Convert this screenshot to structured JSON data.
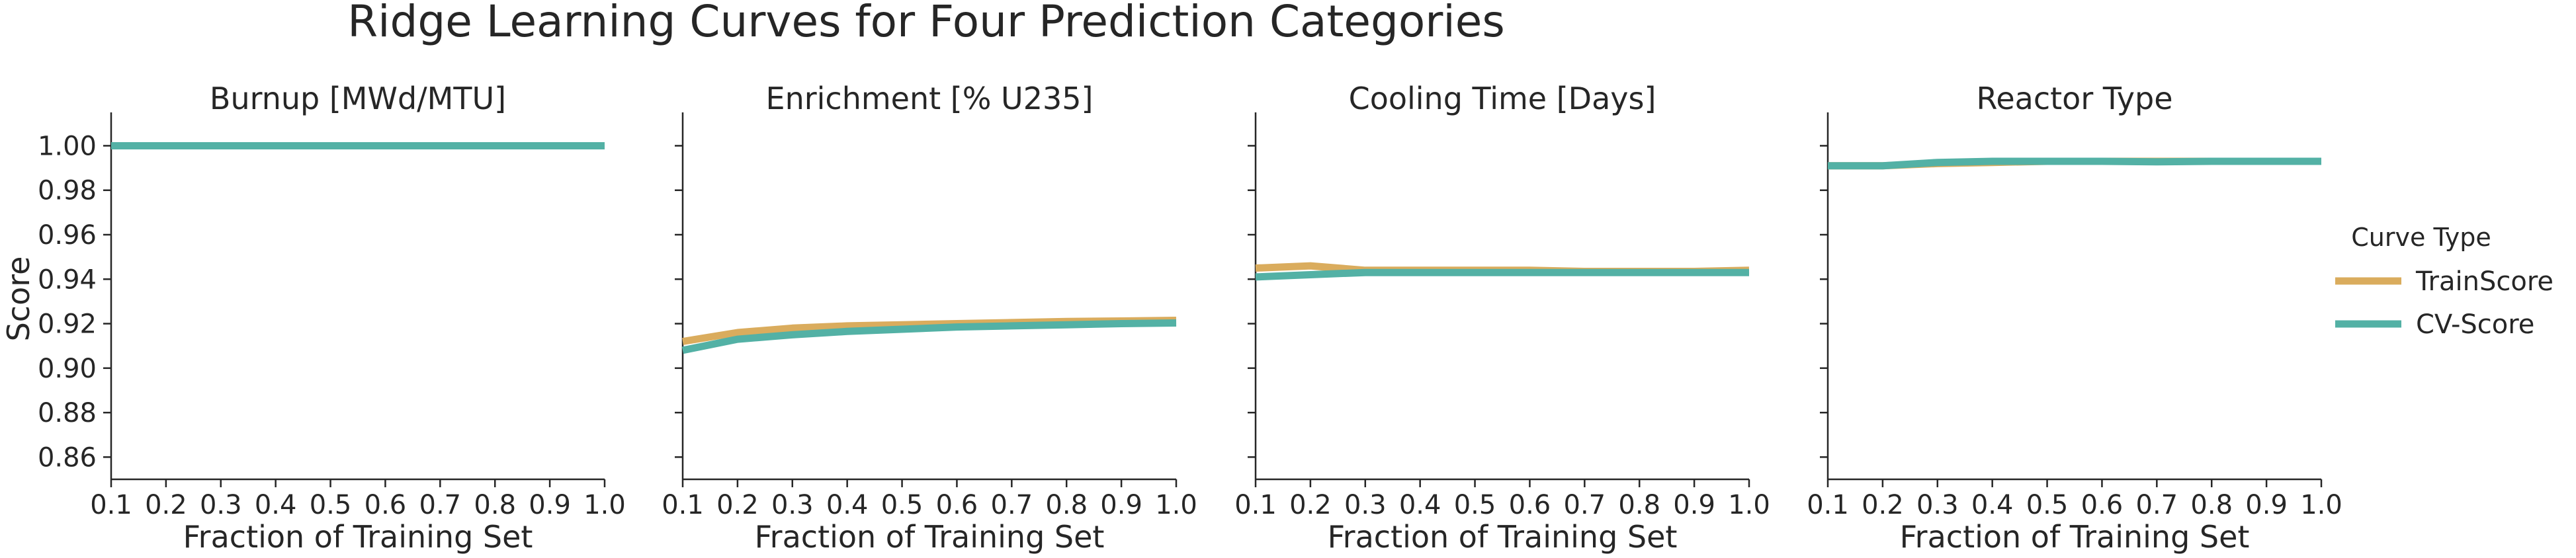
{
  "chart_data": {
    "type": "line",
    "title": "Ridge Learning Curves for Four Prediction Categories",
    "ylabel": "Score",
    "ylim": [
      0.85,
      1.015
    ],
    "yticks": [
      "0.86",
      "0.88",
      "0.90",
      "0.92",
      "0.94",
      "0.96",
      "0.98",
      "1.00"
    ],
    "xlim": [
      0.1,
      1.0
    ],
    "xticks": [
      "0.1",
      "0.2",
      "0.3",
      "0.4",
      "0.5",
      "0.6",
      "0.7",
      "0.8",
      "0.9",
      "1.0"
    ],
    "legend": {
      "title": "Curve Type",
      "position": "right",
      "entries": [
        {
          "name": "TrainScore",
          "color": "#DAAC5D"
        },
        {
          "name": "CV-Score",
          "color": "#53B1A5"
        }
      ]
    },
    "panels": [
      {
        "title": "Burnup [MWd/MTU]",
        "xlabel": "Fraction of Training Set",
        "x": [
          0.1,
          0.2,
          0.3,
          0.4,
          0.5,
          0.6,
          0.7,
          0.8,
          0.9,
          1.0
        ],
        "series": [
          {
            "name": "TrainScore",
            "values": [
              1.0,
              1.0,
              1.0,
              1.0,
              1.0,
              1.0,
              1.0,
              1.0,
              1.0,
              1.0
            ]
          },
          {
            "name": "CV-Score",
            "values": [
              1.0,
              1.0,
              1.0,
              1.0,
              1.0,
              1.0,
              1.0,
              1.0,
              1.0,
              1.0
            ]
          }
        ]
      },
      {
        "title": "Enrichment [% U235]",
        "xlabel": "Fraction of Training Set",
        "x": [
          0.1,
          0.2,
          0.3,
          0.4,
          0.5,
          0.6,
          0.7,
          0.8,
          0.9,
          1.0
        ],
        "series": [
          {
            "name": "TrainScore",
            "values": [
              0.912,
              0.916,
              0.918,
              0.919,
              0.9195,
              0.92,
              0.9205,
              0.921,
              0.9212,
              0.9215
            ]
          },
          {
            "name": "CV-Score",
            "values": [
              0.908,
              0.913,
              0.915,
              0.9165,
              0.9175,
              0.9185,
              0.919,
              0.9195,
              0.92,
              0.9203
            ]
          }
        ]
      },
      {
        "title": "Cooling Time [Days]",
        "xlabel": "Fraction of Training Set",
        "x": [
          0.1,
          0.2,
          0.3,
          0.4,
          0.5,
          0.6,
          0.7,
          0.8,
          0.9,
          1.0
        ],
        "series": [
          {
            "name": "TrainScore",
            "values": [
              0.945,
              0.946,
              0.944,
              0.944,
              0.944,
              0.944,
              0.9435,
              0.9435,
              0.9435,
              0.944
            ]
          },
          {
            "name": "CV-Score",
            "values": [
              0.941,
              0.942,
              0.943,
              0.943,
              0.943,
              0.943,
              0.943,
              0.943,
              0.943,
              0.943
            ]
          }
        ]
      },
      {
        "title": "Reactor Type",
        "xlabel": "Fraction of Training Set",
        "x": [
          0.1,
          0.2,
          0.3,
          0.4,
          0.5,
          0.6,
          0.7,
          0.8,
          0.9,
          1.0
        ],
        "series": [
          {
            "name": "TrainScore",
            "values": [
              0.991,
              0.991,
              0.992,
              0.9925,
              0.993,
              0.993,
              0.993,
              0.993,
              0.993,
              0.993
            ]
          },
          {
            "name": "CV-Score",
            "values": [
              0.991,
              0.991,
              0.9925,
              0.993,
              0.993,
              0.993,
              0.9928,
              0.993,
              0.993,
              0.993
            ]
          }
        ]
      }
    ]
  }
}
